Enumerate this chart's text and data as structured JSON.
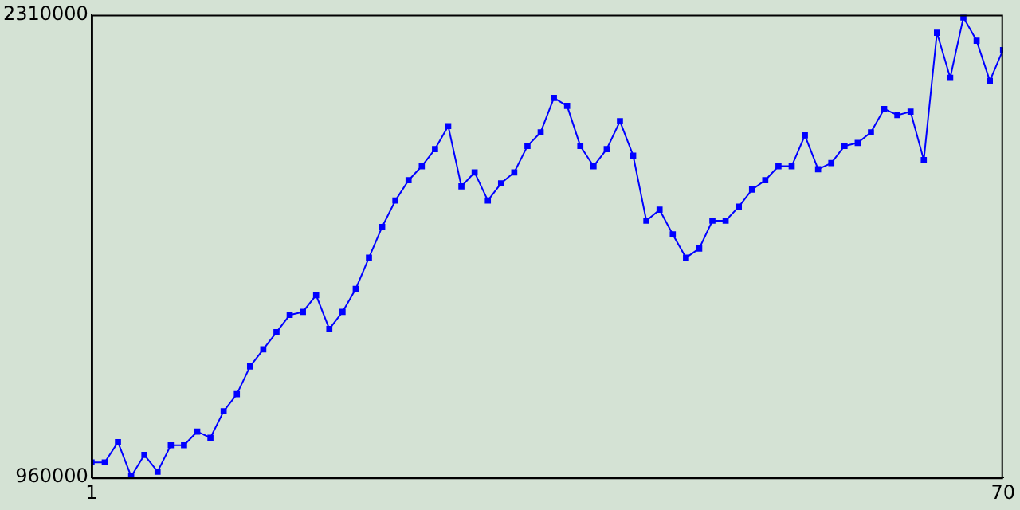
{
  "chart_data": {
    "type": "line",
    "x": [
      1,
      2,
      3,
      4,
      5,
      6,
      7,
      8,
      9,
      10,
      11,
      12,
      13,
      14,
      15,
      16,
      17,
      18,
      19,
      20,
      21,
      22,
      23,
      24,
      25,
      26,
      27,
      28,
      29,
      30,
      31,
      32,
      33,
      34,
      35,
      36,
      37,
      38,
      39,
      40,
      41,
      42,
      43,
      44,
      45,
      46,
      47,
      48,
      49,
      50,
      51,
      52,
      53,
      54,
      55,
      56,
      57,
      58,
      59,
      60,
      61,
      62,
      63,
      64,
      65,
      66,
      67,
      68,
      69,
      70
    ],
    "series": [
      {
        "color": "#0000ff",
        "values": [
          1004000,
          1004000,
          1063000,
          963000,
          1026000,
          977000,
          1054000,
          1054000,
          1094000,
          1076000,
          1153000,
          1203000,
          1284000,
          1334000,
          1384000,
          1434000,
          1443000,
          1492000,
          1393000,
          1443000,
          1510000,
          1601000,
          1691000,
          1768000,
          1827000,
          1868000,
          1918000,
          1985000,
          1809000,
          1850000,
          1768000,
          1818000,
          1850000,
          1927000,
          1967000,
          2067000,
          2044000,
          1927000,
          1868000,
          1918000,
          1999000,
          1899000,
          1709000,
          1741000,
          1669000,
          1601000,
          1628000,
          1709000,
          1709000,
          1750000,
          1800000,
          1827000,
          1868000,
          1868000,
          1958000,
          1859000,
          1877000,
          1927000,
          1936000,
          1967000,
          2035000,
          2017000,
          2027000,
          1886000,
          2257000,
          2126000,
          2302000,
          2234000,
          2117000,
          2207000
        ]
      }
    ],
    "xlim": [
      1,
      70
    ],
    "xticks": [
      1,
      70
    ],
    "ylim": [
      960000,
      2310000
    ],
    "yticks": [
      960000,
      2310000
    ],
    "grid": false,
    "legend": false,
    "marker": "square",
    "line_style": "solid"
  }
}
